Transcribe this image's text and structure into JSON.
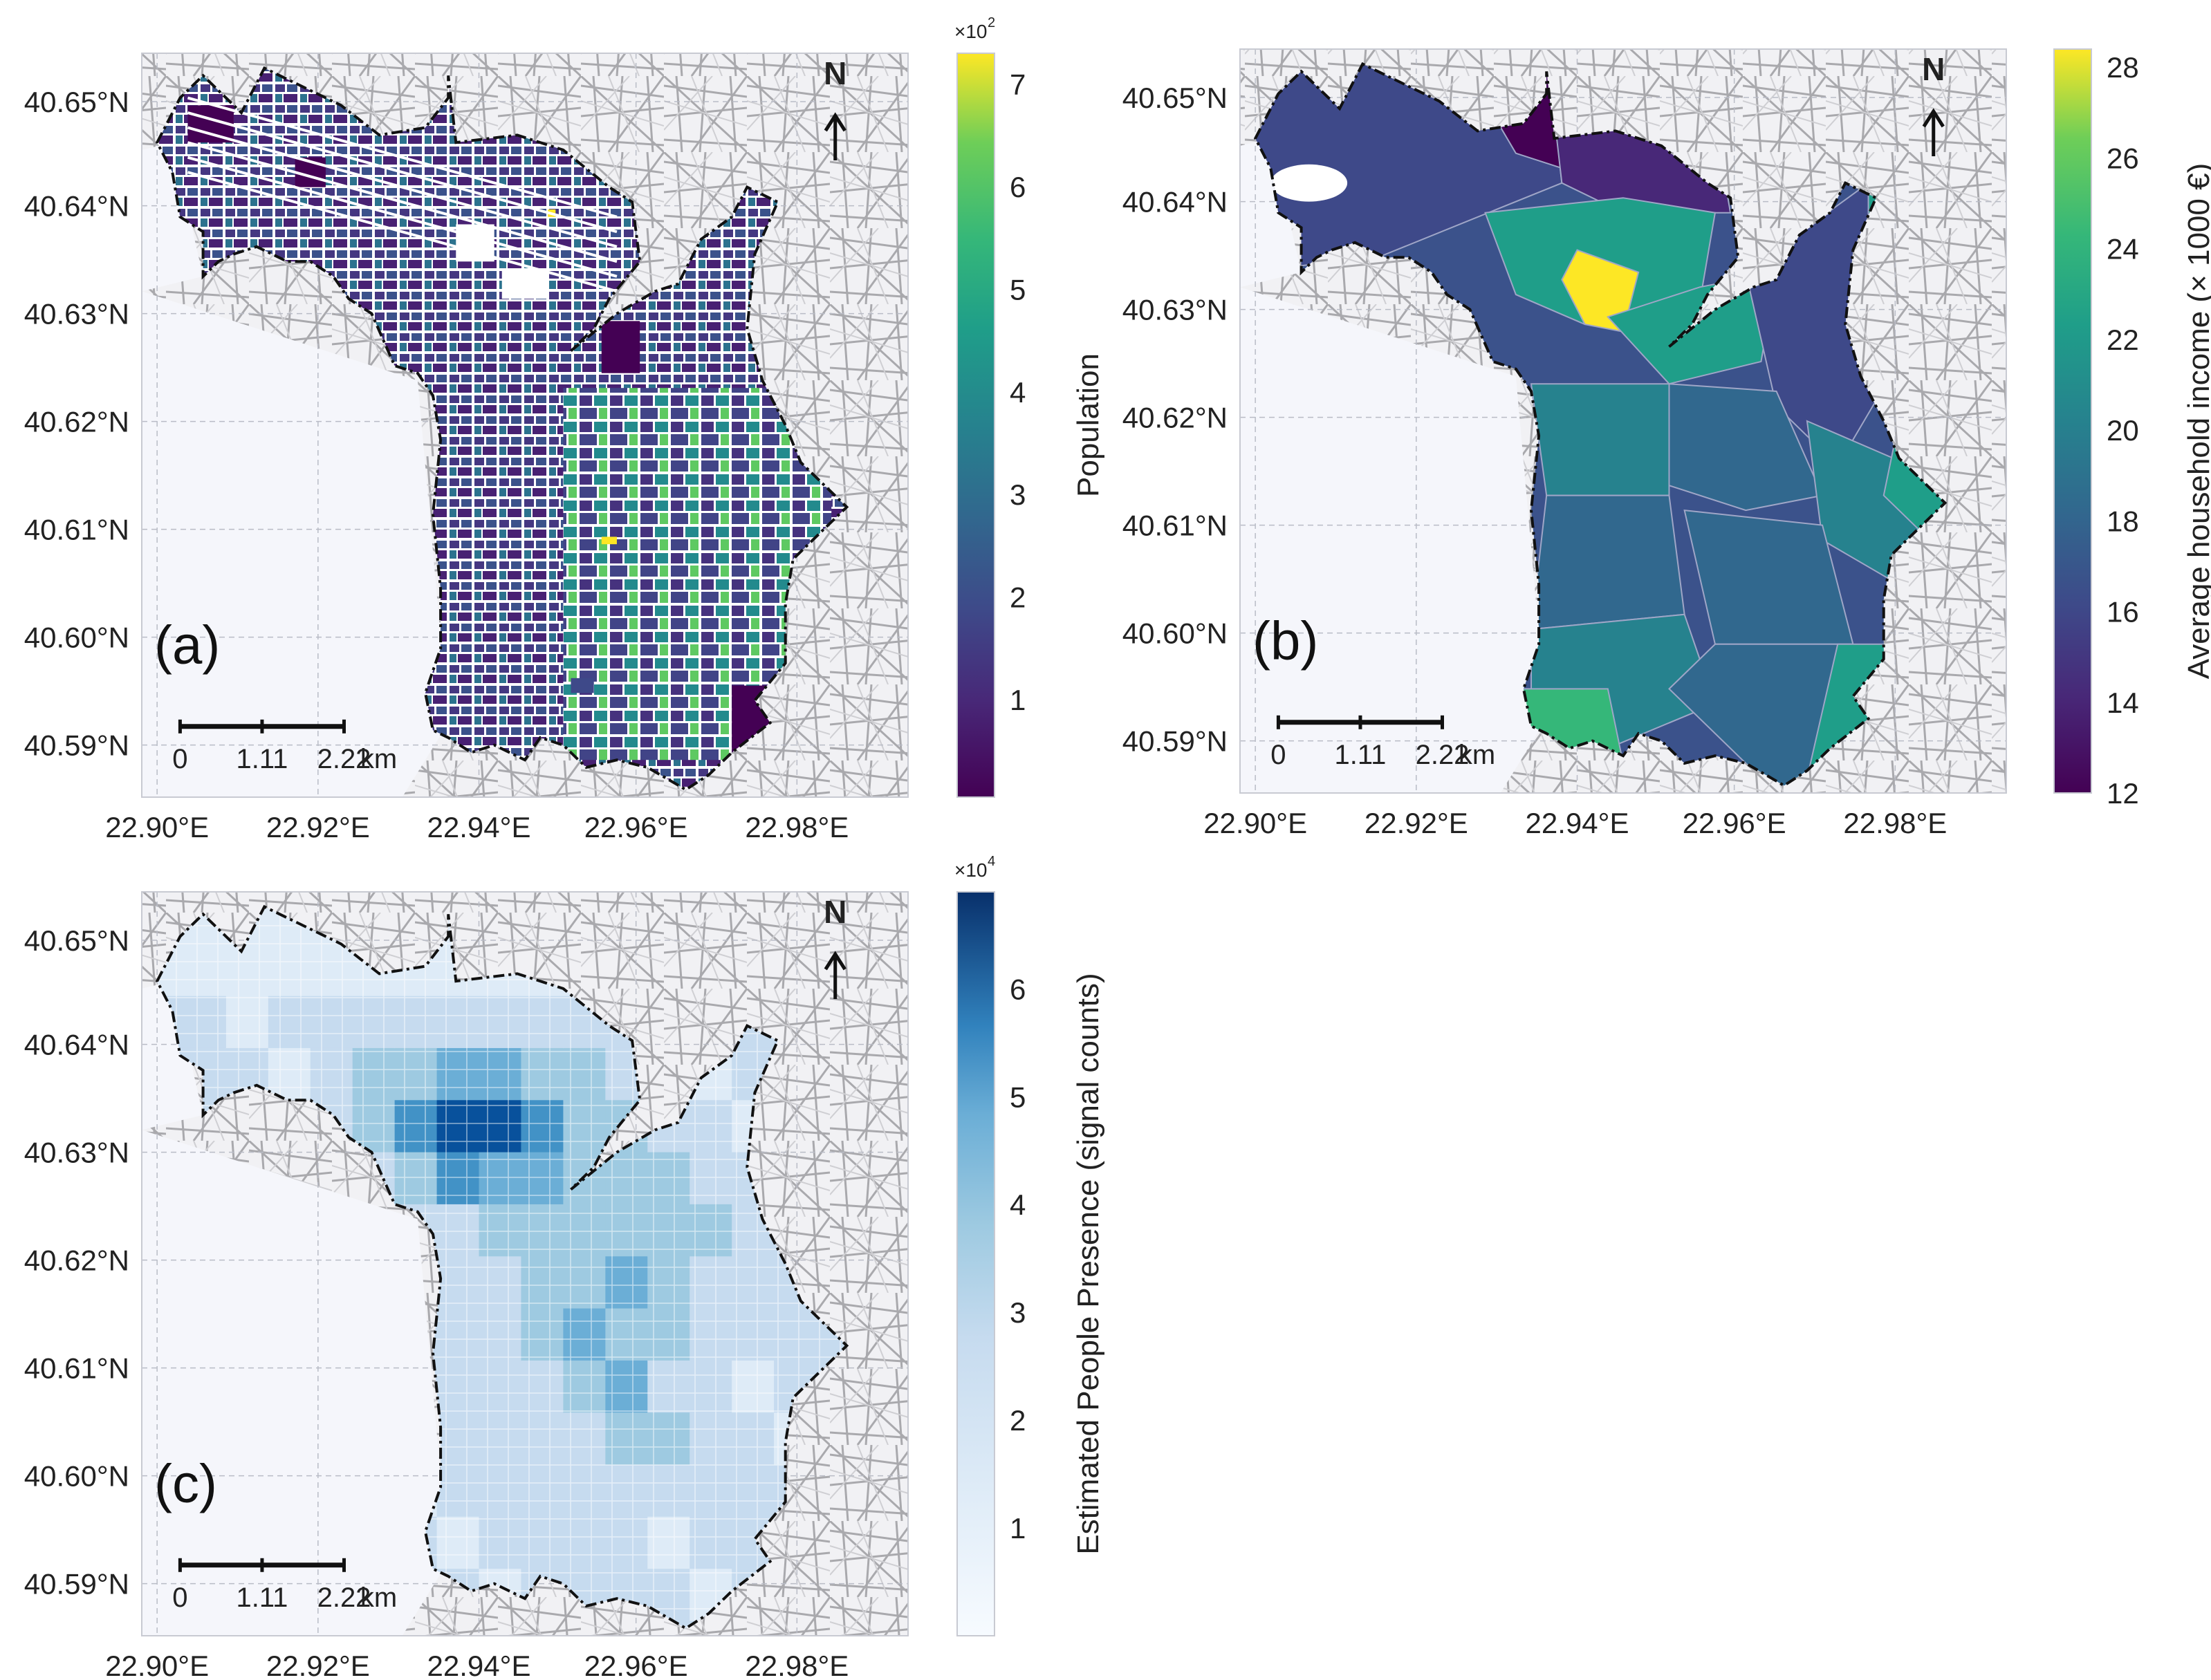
{
  "figure": {
    "panels": [
      {
        "id": "a",
        "label": "(a)",
        "north": "N",
        "lat_ticks": [
          "40.65°N",
          "40.64°N",
          "40.63°N",
          "40.62°N",
          "40.61°N",
          "40.60°N",
          "40.59°N"
        ],
        "lon_ticks": [
          "22.90°E",
          "22.92°E",
          "22.94°E",
          "22.96°E",
          "22.98°E"
        ],
        "scale": {
          "ticks": [
            "0",
            "1.11",
            "2.22"
          ],
          "unit": "km"
        },
        "colorbar": {
          "label": "Population",
          "multiplier": "×10",
          "multiplier_exp": "2",
          "colormap": "viridis",
          "ticks": [
            "1",
            "2",
            "3",
            "4",
            "5",
            "6",
            "7"
          ],
          "range": [
            0.05,
            7.3
          ]
        },
        "map_style": "blocks"
      },
      {
        "id": "b",
        "label": "(b)",
        "north": "N",
        "lat_ticks": [
          "40.65°N",
          "40.64°N",
          "40.63°N",
          "40.62°N",
          "40.61°N",
          "40.60°N",
          "40.59°N"
        ],
        "lon_ticks": [
          "22.90°E",
          "22.92°E",
          "22.94°E",
          "22.96°E",
          "22.98°E"
        ],
        "scale": {
          "ticks": [
            "0",
            "1.11",
            "2.22"
          ],
          "unit": "km"
        },
        "colorbar": {
          "label": "Average household income (× 1000 €)",
          "multiplier": "",
          "multiplier_exp": "",
          "colormap": "viridis",
          "ticks": [
            "12",
            "14",
            "16",
            "18",
            "20",
            "22",
            "24",
            "26",
            "28"
          ],
          "range": [
            12,
            28.4
          ]
        },
        "map_style": "districts"
      },
      {
        "id": "c",
        "label": "(c)",
        "north": "N",
        "lat_ticks": [
          "40.65°N",
          "40.64°N",
          "40.63°N",
          "40.62°N",
          "40.61°N",
          "40.60°N",
          "40.59°N"
        ],
        "lon_ticks": [
          "22.90°E",
          "22.92°E",
          "22.94°E",
          "22.96°E",
          "22.98°E"
        ],
        "scale": {
          "ticks": [
            "0",
            "1.11",
            "2.22"
          ],
          "unit": "km"
        },
        "colorbar": {
          "label": "Estimated People Presence (signal counts)",
          "multiplier": "×10",
          "multiplier_exp": "4",
          "colormap": "blues",
          "ticks": [
            "1",
            "2",
            "3",
            "4",
            "5",
            "6"
          ],
          "range": [
            0,
            6.9
          ]
        },
        "map_style": "grid"
      }
    ]
  }
}
